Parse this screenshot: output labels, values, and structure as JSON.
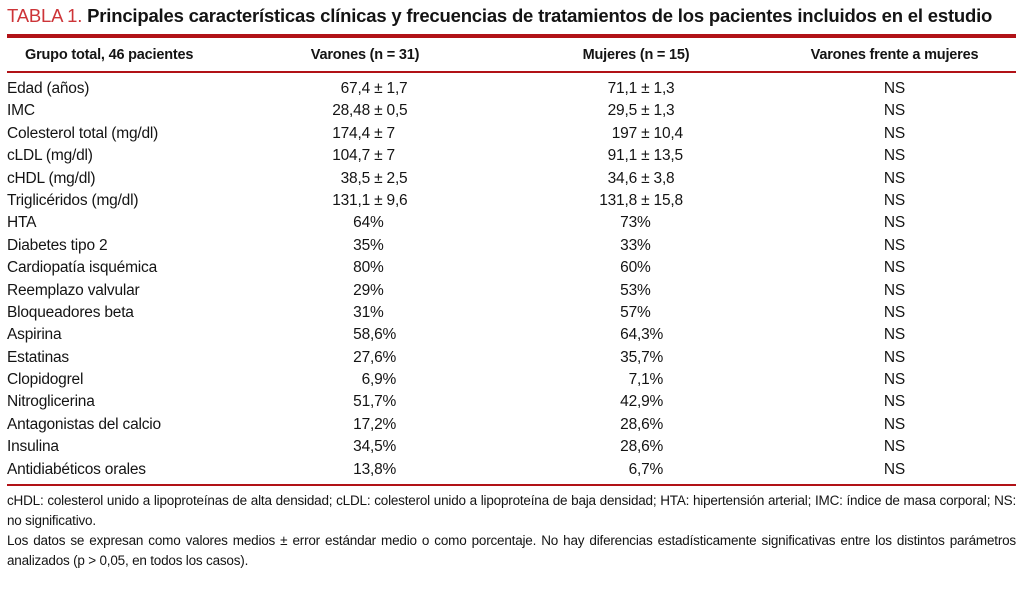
{
  "title": {
    "label": "TABLA 1.",
    "text": "Principales características clínicas y frecuencias de tratamientos de los pacientes incluidos en el estudio"
  },
  "colors": {
    "title_red": "#cd3438",
    "rule_red": "#b11217",
    "text": "#141414"
  },
  "table": {
    "columns": [
      "Grupo total, 46 pacientes",
      "Varones (n = 31)",
      "Mujeres (n = 15)",
      "Varones frente a mujeres"
    ],
    "rows": [
      {
        "label": "Edad (años)",
        "varones": "67,4 ± 1,7",
        "mujeres": "71,1 ± 1,3",
        "comparacion": "NS"
      },
      {
        "label": "IMC",
        "varones": "28,48 ± 0,5",
        "mujeres": "29,5 ± 1,3",
        "comparacion": "NS"
      },
      {
        "label": "Colesterol total (mg/dl)",
        "varones": "174,4 ± 7",
        "mujeres": "197 ± 10,4",
        "comparacion": "NS"
      },
      {
        "label": "cLDL (mg/dl)",
        "varones": "104,7 ± 7",
        "mujeres": "91,1 ± 13,5",
        "comparacion": "NS"
      },
      {
        "label": "cHDL (mg/dl)",
        "varones": "38,5 ± 2,5",
        "mujeres": "34,6 ± 3,8",
        "comparacion": "NS"
      },
      {
        "label": "Triglicéridos (mg/dl)",
        "varones": "131,1 ± 9,6",
        "mujeres": "131,8 ± 15,8",
        "comparacion": "NS"
      },
      {
        "label": "HTA",
        "varones": "64%",
        "mujeres": "73%",
        "comparacion": "NS"
      },
      {
        "label": "Diabetes tipo 2",
        "varones": "35%",
        "mujeres": "33%",
        "comparacion": "NS"
      },
      {
        "label": "Cardiopatía isquémica",
        "varones": "80%",
        "mujeres": "60%",
        "comparacion": "NS"
      },
      {
        "label": "Reemplazo valvular",
        "varones": "29%",
        "mujeres": "53%",
        "comparacion": "NS"
      },
      {
        "label": "Bloqueadores beta",
        "varones": "31%",
        "mujeres": "57%",
        "comparacion": "NS"
      },
      {
        "label": "Aspirina",
        "varones": "58,6%",
        "mujeres": "64,3%",
        "comparacion": "NS"
      },
      {
        "label": "Estatinas",
        "varones": "27,6%",
        "mujeres": "35,7%",
        "comparacion": "NS"
      },
      {
        "label": "Clopidogrel",
        "varones": "6,9%",
        "mujeres": "7,1%",
        "comparacion": "NS"
      },
      {
        "label": "Nitroglicerina",
        "varones": "51,7%",
        "mujeres": "42,9%",
        "comparacion": "NS"
      },
      {
        "label": "Antagonistas del calcio",
        "varones": "17,2%",
        "mujeres": "28,6%",
        "comparacion": "NS"
      },
      {
        "label": "Insulina",
        "varones": "34,5%",
        "mujeres": "28,6%",
        "comparacion": "NS"
      },
      {
        "label": "Antidiabéticos orales",
        "varones": "13,8%",
        "mujeres": "6,7%",
        "comparacion": "NS"
      }
    ]
  },
  "footnotes": [
    "cHDL: colesterol unido a lipoproteínas de alta densidad; cLDL: colesterol unido a lipoproteína de baja densidad; HTA: hipertensión arterial; IMC: índice de masa corporal; NS: no significativo.",
    "Los datos se expresan como valores medios ± error estándar medio o como porcentaje. No hay diferencias estadísticamente significativas entre los distintos pará­metros analizados (p > 0,05, en todos los casos)."
  ]
}
